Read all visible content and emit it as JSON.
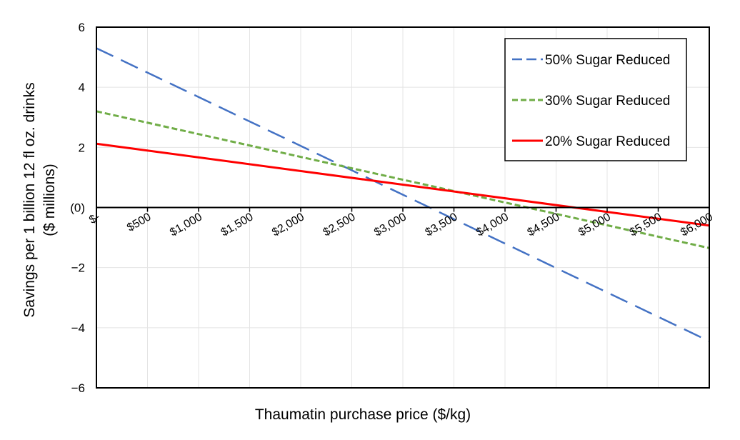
{
  "chart_data": {
    "type": "line",
    "title": "",
    "xlabel": "Thaumatin purchase price ($/kg)",
    "ylabel_line1": "Savings per 1 billion 12 fl oz. drinks",
    "ylabel_line2": "($ millions)",
    "xlim": [
      0,
      6000
    ],
    "ylim": [
      -6,
      6
    ],
    "y_ticks": [
      {
        "value": 6,
        "label": "6"
      },
      {
        "value": 4,
        "label": "4"
      },
      {
        "value": 2,
        "label": "2"
      },
      {
        "value": 0,
        "label": "(0)"
      },
      {
        "value": -2,
        "label": "−2"
      },
      {
        "value": -4,
        "label": "−4"
      },
      {
        "value": -6,
        "label": "−6"
      }
    ],
    "x_ticks": [
      {
        "value": 0,
        "label": "$-"
      },
      {
        "value": 500,
        "label": "$500"
      },
      {
        "value": 1000,
        "label": "$1,000"
      },
      {
        "value": 1500,
        "label": "$1,500"
      },
      {
        "value": 2000,
        "label": "$2,000"
      },
      {
        "value": 2500,
        "label": "$2,500"
      },
      {
        "value": 3000,
        "label": "$3,000"
      },
      {
        "value": 3500,
        "label": "$3,500"
      },
      {
        "value": 4000,
        "label": "$4,000"
      },
      {
        "value": 4500,
        "label": "$4,500"
      },
      {
        "value": 5000,
        "label": "$5,000"
      },
      {
        "value": 5500,
        "label": "$5,500"
      },
      {
        "value": 6000,
        "label": "$6,000"
      }
    ],
    "grid": true,
    "legend_position": "top-right",
    "series": [
      {
        "name": "50% Sugar Reduced",
        "x": [
          0,
          6000
        ],
        "y": [
          5.3,
          -4.45
        ],
        "color": "#4472C4",
        "style": "long-dash"
      },
      {
        "name": "30% Sugar Reduced",
        "x": [
          0,
          6000
        ],
        "y": [
          3.2,
          -1.35
        ],
        "color": "#70AD47",
        "style": "short-dash"
      },
      {
        "name": "20% Sugar Reduced",
        "x": [
          0,
          6000
        ],
        "y": [
          2.12,
          -0.6
        ],
        "color": "#FF0000",
        "style": "solid"
      }
    ]
  }
}
